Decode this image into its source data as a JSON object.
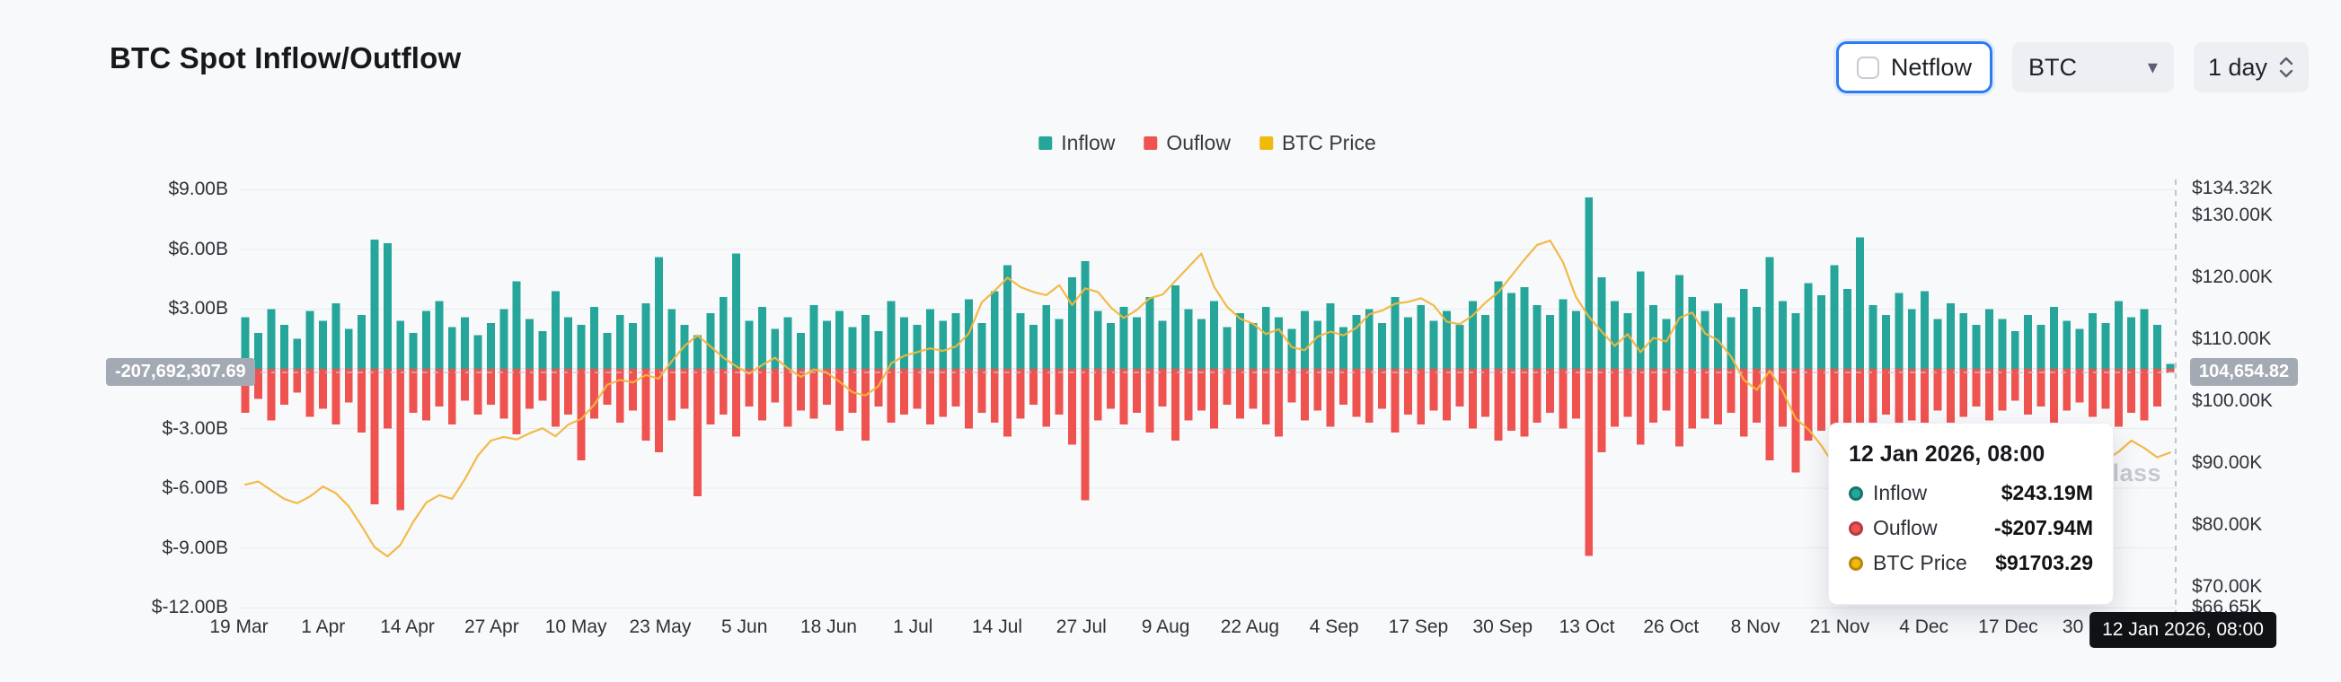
{
  "header": {
    "title": "BTC Spot Inflow/Outflow"
  },
  "controls": {
    "netflow_label": "Netflow",
    "symbol_value": "BTC",
    "interval_value": "1 day"
  },
  "legend": [
    {
      "label": "Inflow",
      "color": "#26a69a"
    },
    {
      "label": "Ouflow",
      "color": "#ef5350"
    },
    {
      "label": "BTC Price",
      "color": "#f0b90b"
    }
  ],
  "crosshair": {
    "left_value": "-207,692,307.69",
    "right_value": "104,654.82",
    "date_value": "12 Jan 2026, 08:00"
  },
  "tooltip": {
    "title": "12 Jan 2026, 08:00",
    "rows": [
      {
        "label": "Inflow",
        "value": "$243.19M",
        "color": "#26a69a",
        "ring": "#15756a"
      },
      {
        "label": "Ouflow",
        "value": "-$207.94M",
        "color": "#ef5350",
        "ring": "#b63a44"
      },
      {
        "label": "BTC Price",
        "value": "$91703.29",
        "color": "#f0b90b",
        "ring": "#b8860b"
      }
    ]
  },
  "watermark": "coinglass",
  "chart_data": {
    "type": "bar+line",
    "title": "BTC Spot Inflow/Outflow",
    "symbol": "BTC",
    "interval": "1 day",
    "days_span": 299,
    "x_ticks": [
      {
        "label": "19 Mar",
        "day": 0
      },
      {
        "label": "1 Apr",
        "day": 13
      },
      {
        "label": "14 Apr",
        "day": 26
      },
      {
        "label": "27 Apr",
        "day": 39
      },
      {
        "label": "10 May",
        "day": 52
      },
      {
        "label": "23 May",
        "day": 65
      },
      {
        "label": "5 Jun",
        "day": 78
      },
      {
        "label": "18 Jun",
        "day": 91
      },
      {
        "label": "1 Jul",
        "day": 104
      },
      {
        "label": "14 Jul",
        "day": 117
      },
      {
        "label": "27 Jul",
        "day": 130
      },
      {
        "label": "9 Aug",
        "day": 143
      },
      {
        "label": "22 Aug",
        "day": 156
      },
      {
        "label": "4 Sep",
        "day": 169
      },
      {
        "label": "17 Sep",
        "day": 182
      },
      {
        "label": "30 Sep",
        "day": 195
      },
      {
        "label": "13 Oct",
        "day": 208
      },
      {
        "label": "26 Oct",
        "day": 221
      },
      {
        "label": "8 Nov",
        "day": 234
      },
      {
        "label": "21 Nov",
        "day": 247
      },
      {
        "label": "4 Dec",
        "day": 260
      },
      {
        "label": "17 Dec",
        "day": 273
      },
      {
        "label": "30 Dec",
        "day": 286
      }
    ],
    "left_axis": {
      "ticks": [
        {
          "label": "$9.00B",
          "value": 9
        },
        {
          "label": "$6.00B",
          "value": 6
        },
        {
          "label": "$3.00B",
          "value": 3
        },
        {
          "label": "$-3.00B",
          "value": -3
        },
        {
          "label": "$-6.00B",
          "value": -6
        },
        {
          "label": "$-9.00B",
          "value": -9
        },
        {
          "label": "$-12.00B",
          "value": -12
        }
      ]
    },
    "right_axis": {
      "ticks": [
        {
          "label": "$134.32K",
          "value": 134.32
        },
        {
          "label": "$130.00K",
          "value": 130
        },
        {
          "label": "$120.00K",
          "value": 120
        },
        {
          "label": "$110.00K",
          "value": 110
        },
        {
          "label": "$100.00K",
          "value": 100
        },
        {
          "label": "$90.00K",
          "value": 90
        },
        {
          "label": "$80.00K",
          "value": 80
        },
        {
          "label": "$70.00K",
          "value": 70
        },
        {
          "label": "$66.65K",
          "value": 66.65
        }
      ]
    },
    "colors": {
      "inflow": "#26a69a",
      "outflow": "#ef5350",
      "price": "#f2b63d"
    },
    "last_point": {
      "date": "12 Jan 2026, 08:00",
      "inflow": "$243.19M",
      "outflow": "-$207.94M",
      "btc_price": "$91703.29"
    },
    "series": {
      "inflow_usd_b": [
        2.6,
        1.8,
        3.0,
        2.2,
        1.5,
        2.9,
        2.4,
        3.3,
        2.0,
        2.7,
        6.5,
        6.3,
        2.4,
        1.8,
        2.9,
        3.4,
        2.1,
        2.6,
        1.7,
        2.3,
        3.0,
        4.4,
        2.5,
        1.9,
        3.9,
        2.6,
        2.2,
        3.1,
        1.8,
        2.7,
        2.3,
        3.3,
        5.6,
        3.0,
        2.2,
        1.7,
        2.8,
        3.6,
        5.8,
        2.4,
        3.1,
        2.0,
        2.6,
        1.8,
        3.2,
        2.4,
        2.9,
        2.1,
        2.7,
        1.9,
        3.4,
        2.6,
        2.2,
        3.0,
        2.4,
        2.8,
        3.5,
        2.3,
        3.9,
        5.2,
        2.8,
        2.2,
        3.2,
        2.5,
        4.6,
        5.4,
        2.9,
        2.3,
        3.1,
        2.6,
        3.6,
        2.4,
        4.2,
        3.0,
        2.5,
        3.4,
        2.1,
        2.8,
        2.3,
        3.1,
        2.6,
        2.0,
        2.9,
        2.4,
        3.3,
        2.1,
        2.7,
        3.0,
        2.3,
        3.6,
        2.6,
        3.2,
        2.4,
        2.9,
        2.2,
        3.4,
        2.7,
        4.4,
        3.8,
        4.1,
        3.2,
        2.7,
        3.5,
        2.9,
        8.6,
        4.6,
        3.4,
        2.8,
        4.9,
        3.2,
        2.5,
        4.7,
        3.6,
        2.9,
        3.3,
        2.6,
        4.0,
        3.1,
        5.6,
        3.4,
        2.8,
        4.3,
        3.7,
        5.2,
        4.0,
        6.6,
        3.2,
        2.7,
        3.8,
        3.0,
        3.9,
        2.5,
        3.3,
        2.8,
        2.2,
        3.0,
        2.5,
        1.9,
        2.7,
        2.2,
        3.1,
        2.4,
        2.0,
        2.8,
        2.3,
        3.4,
        2.6,
        3.0,
        2.2,
        0.24
      ],
      "outflow_usd_b": [
        -2.2,
        -1.5,
        -2.6,
        -1.8,
        -1.2,
        -2.4,
        -2.0,
        -2.8,
        -1.7,
        -3.2,
        -6.8,
        -3.0,
        -7.1,
        -2.2,
        -2.6,
        -1.9,
        -2.8,
        -1.6,
        -2.3,
        -1.8,
        -2.5,
        -3.3,
        -2.0,
        -1.6,
        -2.9,
        -2.3,
        -4.6,
        -2.5,
        -1.8,
        -2.7,
        -2.1,
        -3.6,
        -4.2,
        -2.6,
        -2.0,
        -6.4,
        -2.8,
        -2.3,
        -3.4,
        -1.9,
        -2.6,
        -1.7,
        -2.9,
        -2.1,
        -2.5,
        -1.8,
        -3.1,
        -2.2,
        -3.6,
        -1.9,
        -2.7,
        -2.3,
        -2.0,
        -2.8,
        -2.4,
        -1.9,
        -3.0,
        -2.2,
        -2.7,
        -3.4,
        -2.5,
        -1.8,
        -2.9,
        -2.3,
        -3.8,
        -6.6,
        -2.6,
        -2.0,
        -2.8,
        -2.2,
        -3.2,
        -1.9,
        -3.6,
        -2.6,
        -2.1,
        -3.0,
        -1.8,
        -2.5,
        -2.0,
        -2.8,
        -3.4,
        -1.7,
        -2.6,
        -2.1,
        -2.9,
        -1.8,
        -2.4,
        -2.7,
        -2.0,
        -3.2,
        -2.3,
        -2.8,
        -2.1,
        -2.6,
        -1.9,
        -3.0,
        -2.4,
        -3.6,
        -3.1,
        -3.4,
        -2.7,
        -2.2,
        -3.0,
        -2.5,
        -9.4,
        -4.2,
        -2.9,
        -2.4,
        -3.8,
        -2.7,
        -2.1,
        -3.9,
        -3.0,
        -2.5,
        -2.8,
        -2.2,
        -3.4,
        -2.7,
        -4.6,
        -2.9,
        -5.2,
        -3.6,
        -3.1,
        -4.4,
        -3.4,
        -6.2,
        -2.8,
        -2.3,
        -3.2,
        -2.6,
        -4.0,
        -2.1,
        -2.9,
        -2.4,
        -1.9,
        -2.6,
        -2.1,
        -1.6,
        -2.3,
        -1.9,
        -2.7,
        -2.1,
        -1.7,
        -2.4,
        -2.0,
        -2.9,
        -2.2,
        -2.6,
        -1.9,
        -0.21
      ],
      "btc_price_usd_k": [
        86.5,
        87.0,
        85.6,
        84.2,
        83.5,
        84.6,
        86.2,
        85.1,
        83.0,
        79.8,
        76.4,
        74.9,
        76.8,
        80.5,
        83.6,
        84.8,
        84.2,
        87.4,
        91.2,
        93.6,
        94.2,
        93.8,
        94.8,
        95.6,
        94.3,
        96.2,
        97.1,
        99.4,
        102.6,
        103.4,
        103.0,
        104.2,
        103.6,
        106.4,
        108.9,
        110.6,
        108.8,
        107.0,
        105.6,
        104.4,
        105.8,
        107.0,
        105.3,
        103.9,
        105.1,
        104.6,
        103.1,
        101.4,
        100.9,
        102.4,
        106.1,
        107.3,
        107.9,
        108.5,
        108.1,
        108.8,
        110.9,
        115.9,
        117.8,
        119.9,
        118.4,
        117.6,
        117.1,
        118.7,
        115.5,
        118.2,
        117.6,
        115.1,
        113.4,
        114.7,
        116.6,
        117.2,
        119.4,
        121.6,
        123.8,
        118.4,
        115.2,
        113.3,
        112.5,
        110.8,
        111.6,
        108.7,
        108.2,
        110.4,
        111.2,
        110.6,
        111.8,
        114.0,
        114.6,
        115.7,
        116.0,
        116.6,
        115.4,
        112.8,
        112.4,
        113.8,
        115.9,
        117.6,
        120.2,
        122.8,
        125.2,
        125.9,
        122.4,
        116.8,
        113.6,
        111.2,
        108.9,
        110.8,
        107.9,
        110.2,
        109.6,
        113.4,
        114.3,
        110.9,
        109.8,
        107.2,
        103.4,
        101.8,
        104.9,
        101.6,
        97.2,
        95.4,
        92.8,
        89.6,
        84.3,
        82.1,
        86.9,
        90.8,
        91.4,
        87.6,
        92.2,
        90.6,
        91.2,
        89.4,
        90.1,
        87.8,
        86.3,
        88.6,
        86.8,
        87.9,
        88.7,
        87.2,
        88.2,
        88.8,
        90.4,
        91.8,
        93.6,
        92.4,
        90.9,
        91.7
      ]
    }
  }
}
